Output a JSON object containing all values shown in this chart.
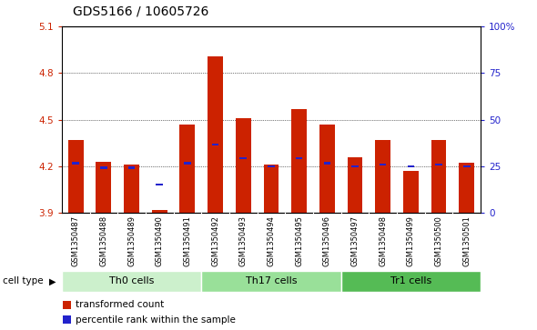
{
  "title": "GDS5166 / 10605726",
  "samples": [
    "GSM1350487",
    "GSM1350488",
    "GSM1350489",
    "GSM1350490",
    "GSM1350491",
    "GSM1350492",
    "GSM1350493",
    "GSM1350494",
    "GSM1350495",
    "GSM1350496",
    "GSM1350497",
    "GSM1350498",
    "GSM1350499",
    "GSM1350500",
    "GSM1350501"
  ],
  "transformed_count": [
    4.37,
    4.23,
    4.21,
    3.92,
    4.47,
    4.91,
    4.51,
    4.21,
    4.57,
    4.47,
    4.26,
    4.37,
    4.17,
    4.37,
    4.22
  ],
  "percentile_rank": [
    4.22,
    4.19,
    4.19,
    4.08,
    4.22,
    4.34,
    4.25,
    4.2,
    4.25,
    4.22,
    4.2,
    4.21,
    4.2,
    4.21,
    4.2
  ],
  "y_min": 3.9,
  "y_max": 5.1,
  "y_ticks": [
    3.9,
    4.2,
    4.5,
    4.8,
    5.1
  ],
  "right_y_ticks": [
    0,
    25,
    50,
    75,
    100
  ],
  "right_y_tick_positions": [
    3.9,
    4.2,
    4.5,
    4.8,
    5.1
  ],
  "bar_color": "#cc2200",
  "percentile_color": "#2222cc",
  "bg_color": "#ffffff",
  "tick_area_bg": "#cccccc",
  "cell_type_groups": [
    {
      "label": "Th0 cells",
      "start": 0,
      "end": 4,
      "color": "#ccf0cc"
    },
    {
      "label": "Th17 cells",
      "start": 5,
      "end": 9,
      "color": "#99e099"
    },
    {
      "label": "Tr1 cells",
      "start": 10,
      "end": 14,
      "color": "#55bb55"
    }
  ],
  "legend_items": [
    {
      "label": "transformed count",
      "color": "#cc2200"
    },
    {
      "label": "percentile rank within the sample",
      "color": "#2222cc"
    }
  ],
  "bar_width": 0.55,
  "title_fontsize": 10,
  "tick_fontsize": 7.5,
  "cell_type_label": "cell type"
}
